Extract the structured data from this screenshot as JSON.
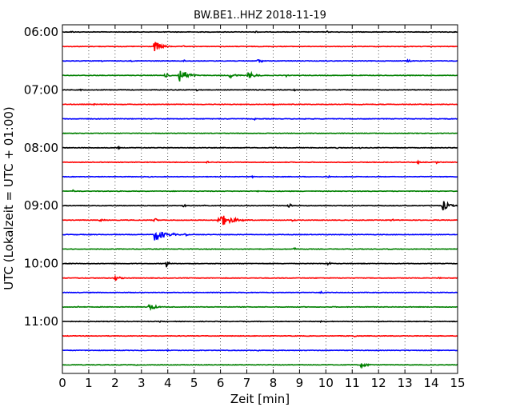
{
  "chart_data": {
    "type": "line",
    "title": "BW.BE1..HHZ 2018-11-19",
    "xlabel": "Zeit  [min]",
    "ylabel": "UTC (Lokalzeit = UTC + 01:00)",
    "xlim": [
      0,
      15
    ],
    "x_ticks": [
      "0",
      "1",
      "2",
      "3",
      "4",
      "5",
      "6",
      "7",
      "8",
      "9",
      "10",
      "11",
      "12",
      "13",
      "14",
      "15"
    ],
    "y_ticks": [
      {
        "label": "06:00",
        "row": 0
      },
      {
        "label": "07:00",
        "row": 4
      },
      {
        "label": "08:00",
        "row": 8
      },
      {
        "label": "09:00",
        "row": 12
      },
      {
        "label": "10:00",
        "row": 16
      },
      {
        "label": "11:00",
        "row": 20
      }
    ],
    "grid": "vertical dotted at each minute",
    "colors": [
      "#000000",
      "#ff0000",
      "#0000ff",
      "#008000"
    ],
    "rows": [
      {
        "start": "06:00",
        "color": "#000000",
        "events": [
          {
            "t": 0.35,
            "a": 0.3
          },
          {
            "t": 7.35,
            "a": 0.3
          },
          {
            "t": 10.05,
            "a": 0.25
          }
        ]
      },
      {
        "start": "06:15",
        "color": "#ff0000",
        "events": [
          {
            "t": 3.5,
            "a": 1.4,
            "d": 0.5
          },
          {
            "t": 4.6,
            "a": 0.2
          }
        ]
      },
      {
        "start": "06:30",
        "color": "#0000ff",
        "events": [
          {
            "t": 1.5,
            "a": 0.15
          },
          {
            "t": 2.6,
            "a": 0.2
          },
          {
            "t": 4.6,
            "a": 0.3
          },
          {
            "t": 7.4,
            "a": 0.5,
            "d": 0.4
          },
          {
            "t": 10.0,
            "a": 0.3
          },
          {
            "t": 13.1,
            "a": 0.3,
            "d": 0.4
          }
        ]
      },
      {
        "start": "06:45",
        "color": "#008000",
        "events": [
          {
            "t": 3.9,
            "a": 0.5,
            "d": 0.4
          },
          {
            "t": 4.45,
            "a": 2.0,
            "d": 0.5
          },
          {
            "t": 6.35,
            "a": 0.6,
            "d": 0.5
          },
          {
            "t": 7.05,
            "a": 0.9,
            "d": 0.5
          },
          {
            "t": 8.5,
            "a": 0.3
          }
        ]
      },
      {
        "start": "07:00",
        "color": "#000000",
        "events": [
          {
            "t": 0.7,
            "a": 0.2
          },
          {
            "t": 5.1,
            "a": 0.3
          },
          {
            "t": 8.8,
            "a": 0.3
          }
        ]
      },
      {
        "start": "07:15",
        "color": "#ff0000",
        "events": [
          {
            "t": 1.2,
            "a": 0.2
          },
          {
            "t": 2.3,
            "a": 0.15
          },
          {
            "t": 8.0,
            "a": 0.3
          },
          {
            "t": 11.3,
            "a": 0.2
          }
        ]
      },
      {
        "start": "07:30",
        "color": "#0000ff",
        "events": [
          {
            "t": 7.3,
            "a": 0.25
          },
          {
            "t": 9.2,
            "a": 0.2
          }
        ]
      },
      {
        "start": "07:45",
        "color": "#008000",
        "events": [
          {
            "t": 4.8,
            "a": 0.15
          }
        ]
      },
      {
        "start": "08:00",
        "color": "#000000",
        "events": [
          {
            "t": 2.1,
            "a": 0.4
          },
          {
            "t": 8.1,
            "a": 0.2
          },
          {
            "t": 10.4,
            "a": 0.25
          },
          {
            "t": 11.3,
            "a": 0.25
          }
        ]
      },
      {
        "start": "08:15",
        "color": "#ff0000",
        "events": [
          {
            "t": 5.5,
            "a": 0.3
          },
          {
            "t": 13.5,
            "a": 0.4
          },
          {
            "t": 14.2,
            "a": 0.3
          }
        ]
      },
      {
        "start": "08:30",
        "color": "#0000ff",
        "events": [
          {
            "t": 3.3,
            "a": 0.2
          },
          {
            "t": 7.2,
            "a": 0.3
          },
          {
            "t": 10.1,
            "a": 0.3
          }
        ]
      },
      {
        "start": "08:45",
        "color": "#008000",
        "events": [
          {
            "t": 0.4,
            "a": 0.3
          },
          {
            "t": 7.4,
            "a": 0.2
          }
        ]
      },
      {
        "start": "09:00",
        "color": "#000000",
        "events": [
          {
            "t": 4.6,
            "a": 0.8
          },
          {
            "t": 5.4,
            "a": 0.5
          },
          {
            "t": 8.6,
            "a": 0.7
          },
          {
            "t": 14.45,
            "a": 1.4,
            "d": 0.4
          }
        ]
      },
      {
        "start": "09:15",
        "color": "#ff0000",
        "events": [
          {
            "t": 1.4,
            "a": 0.3,
            "d": 0.5
          },
          {
            "t": 3.5,
            "a": 0.7
          },
          {
            "t": 5.95,
            "a": 1.8,
            "d": 0.8
          },
          {
            "t": 8.75,
            "a": 0.4
          },
          {
            "t": 12.5,
            "a": 0.4
          }
        ]
      },
      {
        "start": "09:30",
        "color": "#0000ff",
        "events": [
          {
            "t": 3.5,
            "a": 1.6,
            "d": 0.7
          },
          {
            "t": 4.2,
            "a": 0.5
          },
          {
            "t": 4.65,
            "a": 0.5
          }
        ]
      },
      {
        "start": "09:45",
        "color": "#008000",
        "events": [
          {
            "t": 8.8,
            "a": 0.7
          },
          {
            "t": 12.3,
            "a": 0.3
          }
        ]
      },
      {
        "start": "10:00",
        "color": "#000000",
        "events": [
          {
            "t": 3.95,
            "a": 1.0
          },
          {
            "t": 10.1,
            "a": 0.6
          }
        ]
      },
      {
        "start": "10:15",
        "color": "#ff0000",
        "events": [
          {
            "t": 2.0,
            "a": 0.6,
            "d": 0.4
          },
          {
            "t": 14.3,
            "a": 0.3
          }
        ]
      },
      {
        "start": "10:30",
        "color": "#0000ff",
        "events": [
          {
            "t": 9.8,
            "a": 0.6
          },
          {
            "t": 0.6,
            "a": 0.2
          }
        ]
      },
      {
        "start": "10:45",
        "color": "#008000",
        "events": [
          {
            "t": 3.3,
            "a": 1.0,
            "d": 0.4
          },
          {
            "t": 0.6,
            "a": 0.2
          }
        ]
      },
      {
        "start": "11:00",
        "color": "#000000",
        "events": [
          {
            "t": 3.7,
            "a": 0.2
          },
          {
            "t": 9.8,
            "a": 0.2
          }
        ]
      },
      {
        "start": "11:15",
        "color": "#ff0000",
        "events": [
          {
            "t": 11.1,
            "a": 0.4
          },
          {
            "t": 7.6,
            "a": 0.15
          }
        ]
      },
      {
        "start": "11:30",
        "color": "#0000ff",
        "events": [
          {
            "t": 7.4,
            "a": 0.25
          },
          {
            "t": 4.0,
            "a": 0.15
          }
        ]
      },
      {
        "start": "11:45",
        "color": "#008000",
        "events": [
          {
            "t": 11.35,
            "a": 0.8,
            "d": 0.4
          },
          {
            "t": 2.8,
            "a": 0.2
          }
        ]
      }
    ]
  }
}
